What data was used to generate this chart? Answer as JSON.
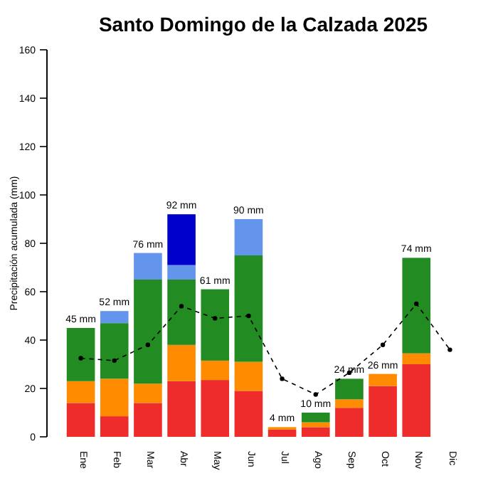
{
  "chart_data": {
    "type": "bar",
    "title": "Santo Domingo de la Calzada 2025",
    "ylabel": "Precipitación acumulada (mm)",
    "stacked": true,
    "grid": false,
    "categories": [
      "Ene",
      "Feb",
      "Mar",
      "Abr",
      "May",
      "Jun",
      "Jul",
      "Ago",
      "Sep",
      "Oct",
      "Nov",
      "Dic"
    ],
    "series": [
      {
        "color": "#ee2c2c",
        "values": [
          14,
          8.5,
          14,
          23,
          23.5,
          19,
          3,
          4,
          12,
          21,
          30,
          null
        ]
      },
      {
        "color": "#ff8c00",
        "values": [
          9,
          15.5,
          8,
          15,
          8,
          12,
          1,
          2,
          3.5,
          5,
          4.5,
          null
        ]
      },
      {
        "color": "#228b22",
        "values": [
          22,
          23,
          43,
          27,
          29.5,
          44,
          null,
          4,
          8.5,
          null,
          39.5,
          null
        ]
      },
      {
        "color": "#6495ed",
        "values": [
          null,
          5,
          11,
          6,
          null,
          15,
          null,
          null,
          null,
          null,
          null,
          null
        ]
      },
      {
        "color": "#0000cd",
        "values": [
          null,
          null,
          null,
          21,
          null,
          null,
          null,
          null,
          null,
          null,
          null,
          null
        ]
      },
      {
        "type": "line",
        "color": "#000000",
        "line_style": "dashed",
        "marker": "circle",
        "values": [
          32.5,
          31.5,
          38,
          54,
          49,
          50,
          24,
          17.5,
          26.5,
          38,
          55,
          36
        ]
      }
    ],
    "totals": [
      "45 mm",
      "52 mm",
      "76 mm",
      "92 mm",
      "61 mm",
      "90 mm",
      "4 mm",
      "10 mm",
      "24 mm",
      "26 mm",
      "74 mm",
      null
    ],
    "ylim": [
      0,
      160
    ],
    "yticks": [
      0,
      20,
      40,
      60,
      80,
      100,
      120,
      140,
      160
    ]
  }
}
